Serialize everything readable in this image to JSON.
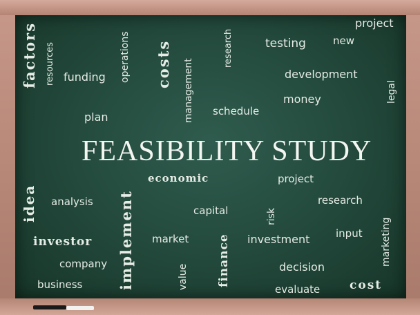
{
  "title": "FEASIBILITY STUDY",
  "words": {
    "project_top": "project",
    "new": "new",
    "testing": "testing",
    "research_top": "research",
    "costs": "costs",
    "operations": "operations",
    "factors": "factors",
    "resources": "resources",
    "funding": "funding",
    "management": "management",
    "development": "development",
    "legal": "legal",
    "money": "money",
    "schedule": "schedule",
    "plan": "plan",
    "economic": "economic",
    "project_mid": "project",
    "idea": "idea",
    "analysis": "analysis",
    "implement": "implement",
    "capital": "capital",
    "risk": "risk",
    "research_mid": "research",
    "input": "input",
    "marketing": "marketing",
    "investor": "investor",
    "market": "market",
    "investment": "investment",
    "finance": "finance",
    "company": "company",
    "value": "value",
    "decision": "decision",
    "business": "business",
    "evaluate": "evaluate",
    "cost": "cost"
  },
  "colors": {
    "board": "#22483b",
    "chalk_text": "#e6ece6",
    "frame": "#b88878"
  }
}
